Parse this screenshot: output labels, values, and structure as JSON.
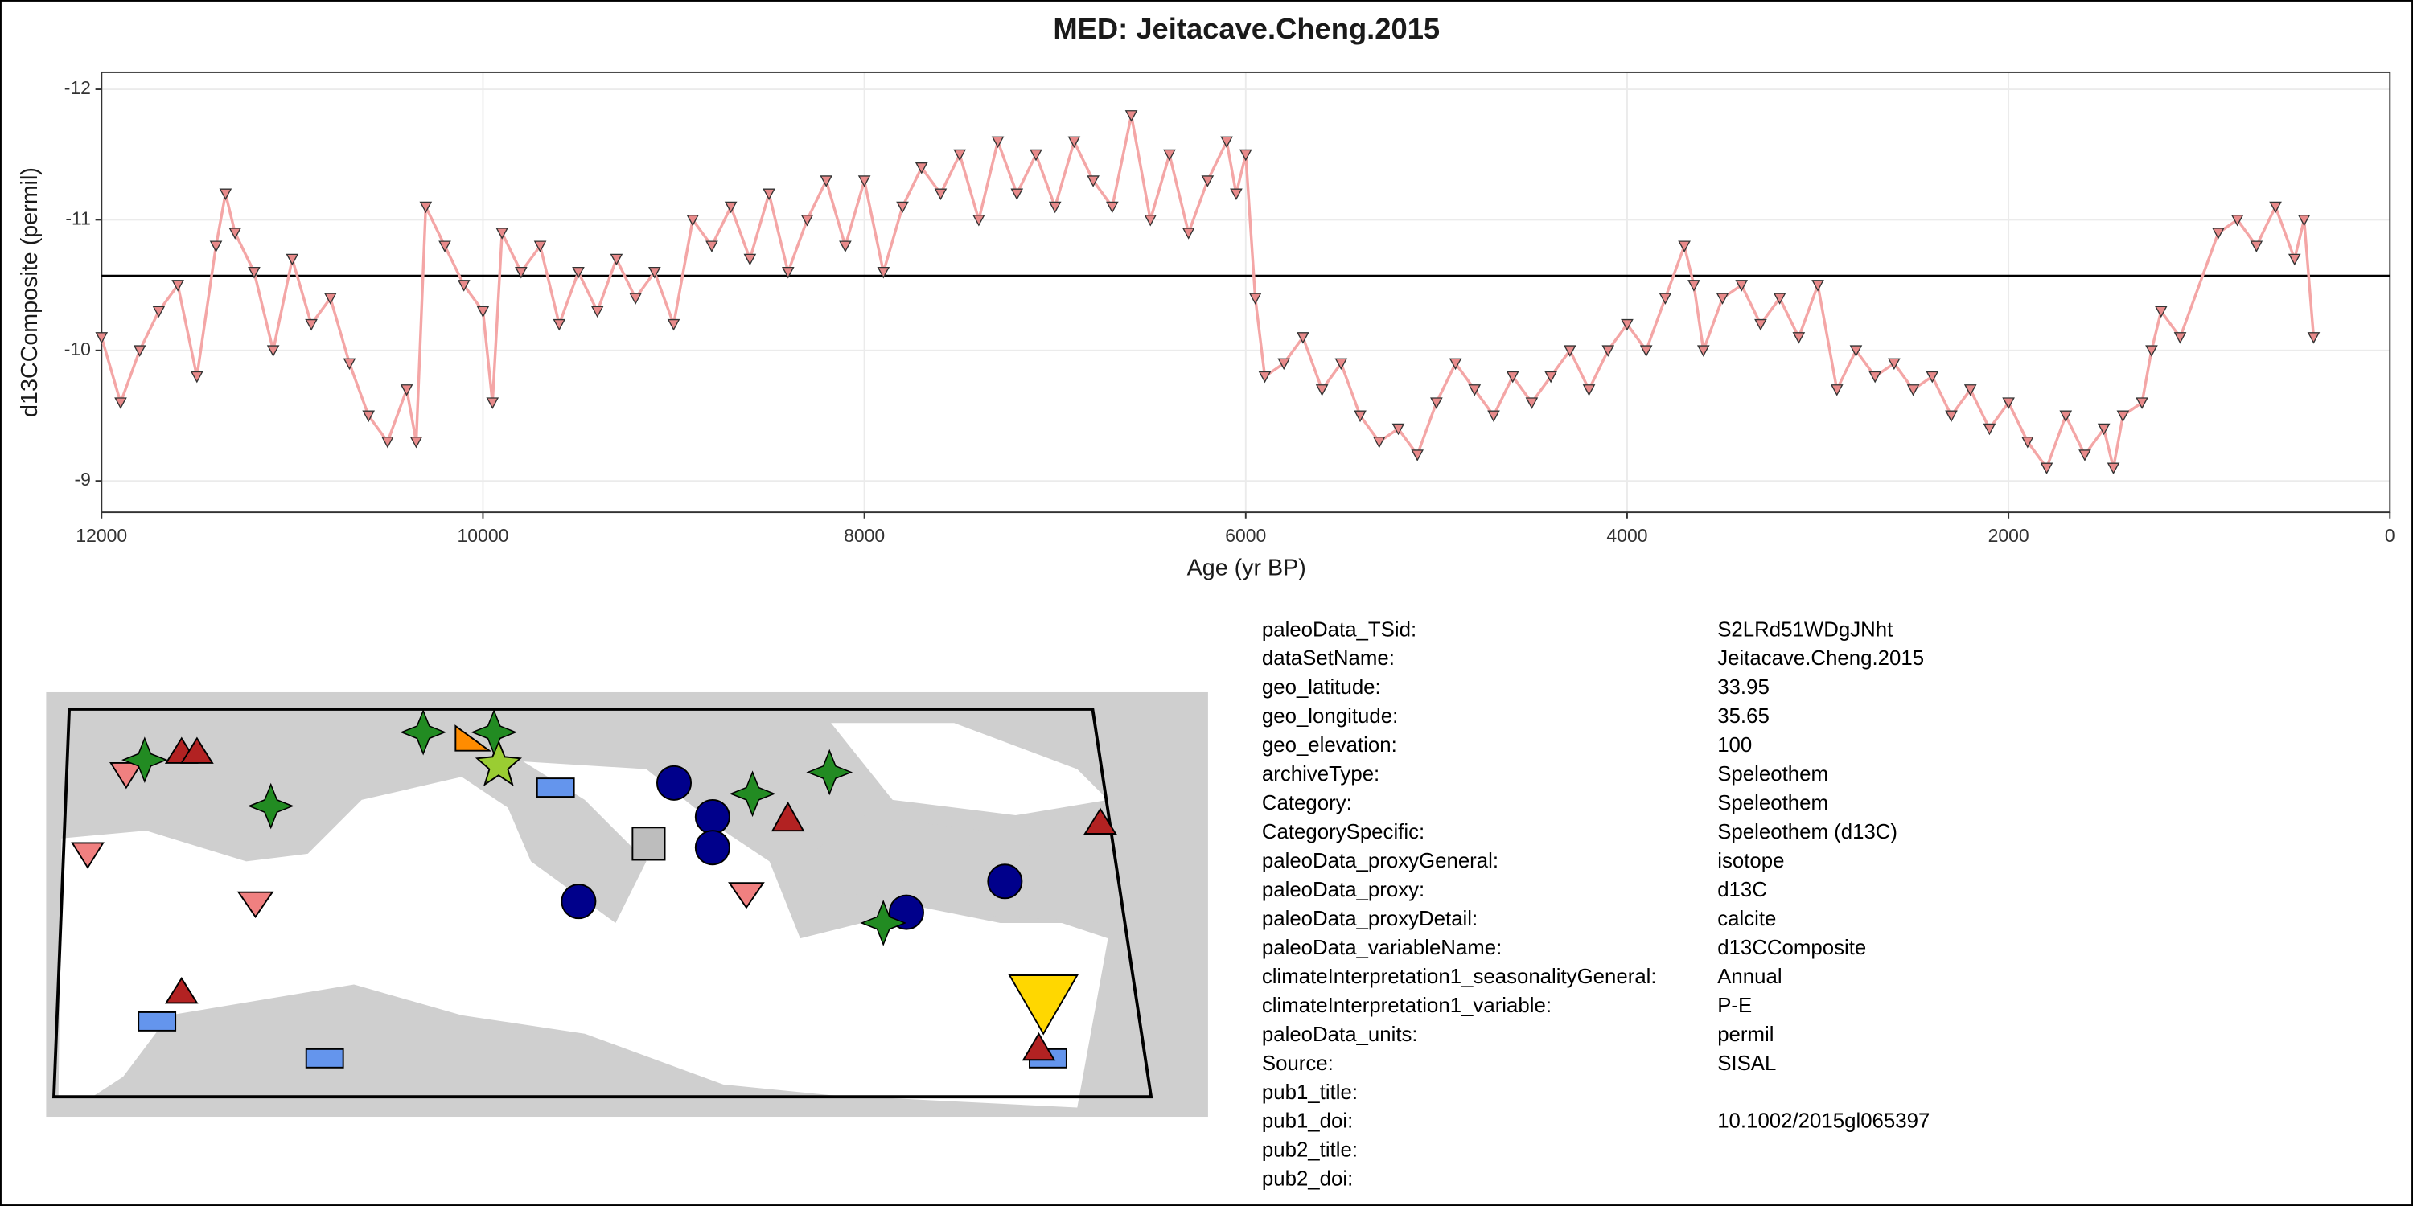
{
  "chart_data": {
    "type": "line",
    "title": "MED: Jeitacave.Cheng.2015",
    "x_label": "Age (yr BP)",
    "y_label": "d13CComposite (permil)",
    "xlim": [
      12000,
      0
    ],
    "ylim": [
      -8.76,
      -12.13
    ],
    "xticks": [
      12000,
      10000,
      8000,
      6000,
      4000,
      2000,
      0
    ],
    "yticks": [
      -12,
      -11,
      -10,
      -9
    ],
    "grid": true,
    "hline": -10.57,
    "color": "#f4a6a6",
    "marker_color": "#e88a8a",
    "x": [
      12000,
      11900,
      11800,
      11700,
      11600,
      11500,
      11400,
      11350,
      11300,
      11200,
      11100,
      11000,
      10900,
      10800,
      10700,
      10600,
      10500,
      10400,
      10350,
      10300,
      10200,
      10100,
      10000,
      9950,
      9900,
      9800,
      9700,
      9600,
      9500,
      9400,
      9300,
      9200,
      9100,
      9000,
      8900,
      8800,
      8700,
      8600,
      8500,
      8400,
      8300,
      8200,
      8100,
      8000,
      7900,
      7800,
      7700,
      7600,
      7500,
      7400,
      7300,
      7200,
      7100,
      7000,
      6900,
      6800,
      6700,
      6600,
      6500,
      6400,
      6300,
      6200,
      6100,
      6050,
      6000,
      5950,
      5900,
      5800,
      5700,
      5600,
      5500,
      5400,
      5300,
      5200,
      5100,
      5000,
      4900,
      4800,
      4700,
      4600,
      4500,
      4400,
      4300,
      4200,
      4100,
      4000,
      3900,
      3800,
      3700,
      3650,
      3600,
      3500,
      3400,
      3300,
      3200,
      3100,
      3000,
      2900,
      2800,
      2700,
      2600,
      2500,
      2400,
      2300,
      2200,
      2100,
      2000,
      1900,
      1800,
      1700,
      1600,
      1500,
      1450,
      1400,
      1300,
      1250,
      1200,
      1100,
      900,
      800,
      700,
      600,
      500,
      450,
      400
    ],
    "values": [
      -10.1,
      -9.6,
      -10.0,
      -10.3,
      -10.5,
      -9.8,
      -10.8,
      -11.2,
      -10.9,
      -10.6,
      -10.0,
      -10.7,
      -10.2,
      -10.4,
      -9.9,
      -9.5,
      -9.3,
      -9.7,
      -9.3,
      -11.1,
      -10.8,
      -10.5,
      -10.3,
      -9.6,
      -10.9,
      -10.6,
      -10.8,
      -10.2,
      -10.6,
      -10.3,
      -10.7,
      -10.4,
      -10.6,
      -10.2,
      -11.0,
      -10.8,
      -11.1,
      -10.7,
      -11.2,
      -10.6,
      -11.0,
      -11.3,
      -10.8,
      -11.3,
      -10.6,
      -11.1,
      -11.4,
      -11.2,
      -11.5,
      -11.0,
      -11.6,
      -11.2,
      -11.5,
      -11.1,
      -11.6,
      -11.3,
      -11.1,
      -11.8,
      -11.0,
      -11.5,
      -10.9,
      -11.3,
      -11.6,
      -11.2,
      -11.5,
      -10.4,
      -9.8,
      -9.9,
      -10.1,
      -9.7,
      -9.9,
      -9.5,
      -9.3,
      -9.4,
      -9.2,
      -9.6,
      -9.9,
      -9.7,
      -9.5,
      -9.8,
      -9.6,
      -9.8,
      -10.0,
      -9.7,
      -10.0,
      -10.2,
      -10.0,
      -10.4,
      -10.8,
      -10.5,
      -10.0,
      -10.4,
      -10.5,
      -10.2,
      -10.4,
      -10.1,
      -10.5,
      -9.7,
      -10.0,
      -9.8,
      -9.9,
      -9.7,
      -9.8,
      -9.5,
      -9.7,
      -9.4,
      -9.6,
      -9.3,
      -9.1,
      -9.5,
      -9.2,
      -9.4,
      -9.1,
      -9.5,
      -9.6,
      -10.0,
      -10.3,
      -10.1,
      -10.9,
      -11.0,
      -10.8,
      -11.1,
      -10.7,
      -11.0,
      -10.1
    ]
  },
  "metadata": {
    "rows": [
      {
        "key": "paleoData_TSid:",
        "value": "S2LRd51WDgJNht"
      },
      {
        "key": "dataSetName:",
        "value": "Jeitacave.Cheng.2015"
      },
      {
        "key": "geo_latitude:",
        "value": "33.95"
      },
      {
        "key": "geo_longitude:",
        "value": "35.65"
      },
      {
        "key": "geo_elevation:",
        "value": "100"
      },
      {
        "key": "archiveType:",
        "value": "Speleothem"
      },
      {
        "key": "Category:",
        "value": "Speleothem"
      },
      {
        "key": "CategorySpecific:",
        "value": "Speleothem (d13C)"
      },
      {
        "key": "paleoData_proxyGeneral:",
        "value": "isotope"
      },
      {
        "key": "paleoData_proxy:",
        "value": "d13C"
      },
      {
        "key": "paleoData_proxyDetail:",
        "value": "calcite"
      },
      {
        "key": "paleoData_variableName:",
        "value": "d13CComposite"
      },
      {
        "key": "climateInterpretation1_seasonalityGeneral:",
        "value": "Annual"
      },
      {
        "key": "climateInterpretation1_variable:",
        "value": "P-E"
      },
      {
        "key": "paleoData_units:",
        "value": "permil"
      },
      {
        "key": "Source:",
        "value": "SISAL"
      },
      {
        "key": "pub1_title:"
      },
      {
        "key": "pub1_doi:",
        "value": "10.1002/2015gl065397"
      },
      {
        "key": "pub2_title:"
      },
      {
        "key": "pub2_doi:"
      }
    ]
  }
}
